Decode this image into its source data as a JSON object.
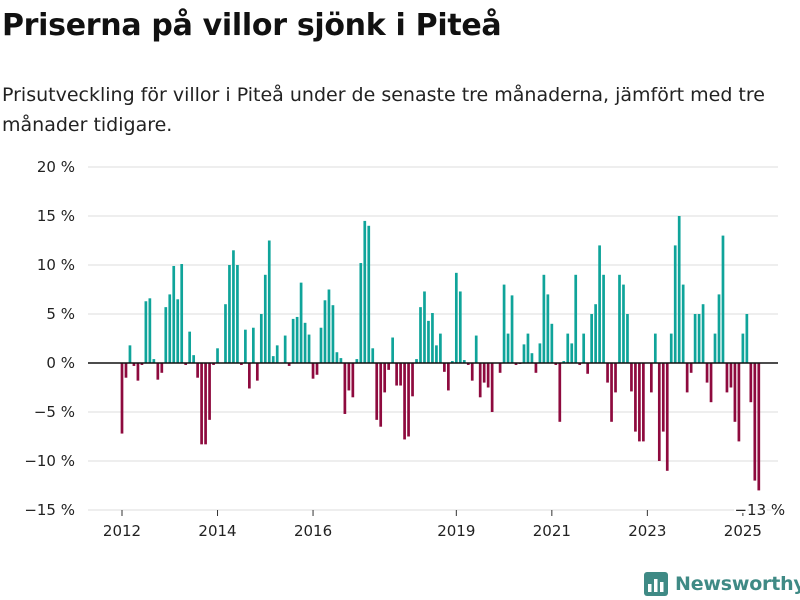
{
  "title": "Priserna på villor sjönk i Piteå",
  "subtitle": "Prisutveckling för villor i Piteå under de senaste tre månaderna, jämfört med tre månader tidigare.",
  "brand": {
    "name": "Newsworthy",
    "icon": "newsworthy-logo-icon"
  },
  "colors": {
    "positive": "#0fa49a",
    "negative": "#8e0a3e",
    "grid": "#dddddd",
    "zero_line": "#111111"
  },
  "chart_data": {
    "type": "bar",
    "title": "Priserna på villor sjönk i Piteå",
    "xlabel": "",
    "ylabel": "",
    "ylim": [
      -15,
      20
    ],
    "yticks": [
      20,
      15,
      10,
      5,
      0,
      -5,
      -10,
      -15
    ],
    "ytick_labels": [
      "20 %",
      "15 %",
      "10 %",
      "5 %",
      "0 %",
      "−5 %",
      "−10 %",
      "−15 %"
    ],
    "xticks": [
      2012,
      2014,
      2016,
      2019,
      2021,
      2023,
      2025
    ],
    "xtick_labels": [
      "2012",
      "2014",
      "2016",
      "2019",
      "2021",
      "2023",
      "2025"
    ],
    "x_start": "2012-01",
    "x_frequency": "monthly",
    "grid": true,
    "annotation": {
      "label": "−13 %",
      "at": "last"
    },
    "values": [
      -7.2,
      -1.5,
      1.8,
      -0.3,
      -1.8,
      -0.2,
      6.3,
      6.6,
      0.4,
      -1.7,
      -1.0,
      5.7,
      7.0,
      9.9,
      6.5,
      10.1,
      -0.2,
      3.2,
      0.8,
      -1.5,
      -8.3,
      -8.3,
      -5.8,
      -0.2,
      1.5,
      0.0,
      6.0,
      10.0,
      11.5,
      10.0,
      -0.2,
      3.4,
      -2.6,
      3.6,
      -1.8,
      5.0,
      9.0,
      12.5,
      0.7,
      1.8,
      0.0,
      2.8,
      -0.3,
      4.5,
      4.7,
      8.2,
      4.1,
      2.9,
      -1.6,
      -1.2,
      3.6,
      6.4,
      7.5,
      5.9,
      1.1,
      0.5,
      -5.2,
      -2.8,
      -3.5,
      0.4,
      10.2,
      14.5,
      14.0,
      1.5,
      -5.8,
      -6.5,
      -3.0,
      -0.7,
      2.6,
      -2.3,
      -2.3,
      -7.8,
      -7.5,
      -3.4,
      0.4,
      5.7,
      7.3,
      4.3,
      5.1,
      1.8,
      3.0,
      -0.9,
      -2.8,
      0.2,
      9.2,
      7.3,
      0.3,
      -0.2,
      -1.8,
      2.8,
      -3.5,
      -2.0,
      -2.5,
      -5.0,
      0.0,
      -1.0,
      8.0,
      3.0,
      6.9,
      -0.2,
      -0.1,
      1.9,
      3.0,
      1.0,
      -1.0,
      2.0,
      9.0,
      7.0,
      4.0,
      -0.2,
      -6.0,
      0.2,
      3.0,
      2.0,
      9.0,
      -0.2,
      3.0,
      -1.1,
      5.0,
      6.0,
      12.0,
      9.0,
      -2.0,
      -6.0,
      -3.0,
      9.0,
      8.0,
      5.0,
      -2.9,
      -7.0,
      -8.0,
      -8.0,
      0.0,
      -3.0,
      3.0,
      -10.0,
      -7.0,
      -11.0,
      3.0,
      12.0,
      15.0,
      8.0,
      -3.0,
      -1.0,
      5.0,
      5.0,
      6.0,
      -2.0,
      -4.0,
      3.0,
      7.0,
      13.0,
      -3.0,
      -2.5,
      -6.0,
      -8.0,
      3.0,
      5.0,
      -4.0,
      -12.0,
      -13.0
    ]
  }
}
